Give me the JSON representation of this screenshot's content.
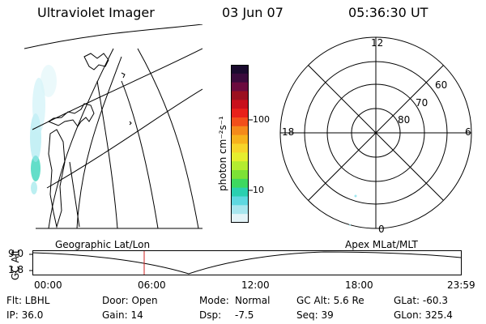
{
  "header": {
    "title": "Ultraviolet Imager",
    "date": "03 Jun 07",
    "time": "05:36:30 UT"
  },
  "color_bar": {
    "unit": "photon cm⁻²s⁻¹",
    "ticks": [
      "100",
      "10"
    ],
    "colors": [
      "#1a0a2e",
      "#3a0a3c",
      "#6b0a3e",
      "#9b1020",
      "#c8101c",
      "#e8201a",
      "#f24f1a",
      "#f58a1a",
      "#f7b21c",
      "#f7d52a",
      "#e6ee2e",
      "#b4ec30",
      "#7ce236",
      "#3ed860",
      "#2ad0b0",
      "#5ed8e0",
      "#a8e6ee",
      "#e4f4f8"
    ]
  },
  "left_map": {
    "label": "Geographic Lat/Lon"
  },
  "polar_map": {
    "label": "Apex  MLat/MLT",
    "mlt_labels": [
      "12",
      "18",
      "6",
      "0"
    ],
    "lat_labels": [
      "60",
      "70",
      "80"
    ]
  },
  "timeline": {
    "y_label": "GC Alt",
    "y_ticks": [
      "9.0",
      "1.8"
    ],
    "x_ticks": [
      "00:00",
      "06:00",
      "12:00",
      "18:00",
      "23:59"
    ],
    "marker_color": "#cc2020"
  },
  "info": {
    "filter": "Flt: LBHL",
    "ip": "IP: 36.0",
    "door": "Door: Open",
    "gain": "Gain: 14",
    "mode_label": "Mode:",
    "mode_value": "Normal",
    "dsp_label": "Dsp:",
    "dsp_value": "-7.5",
    "gc_alt": "GC Alt: 5.6 Re",
    "seq": "Seq: 39",
    "glat": "GLat: -60.3",
    "glon": "GLon: 325.4"
  }
}
